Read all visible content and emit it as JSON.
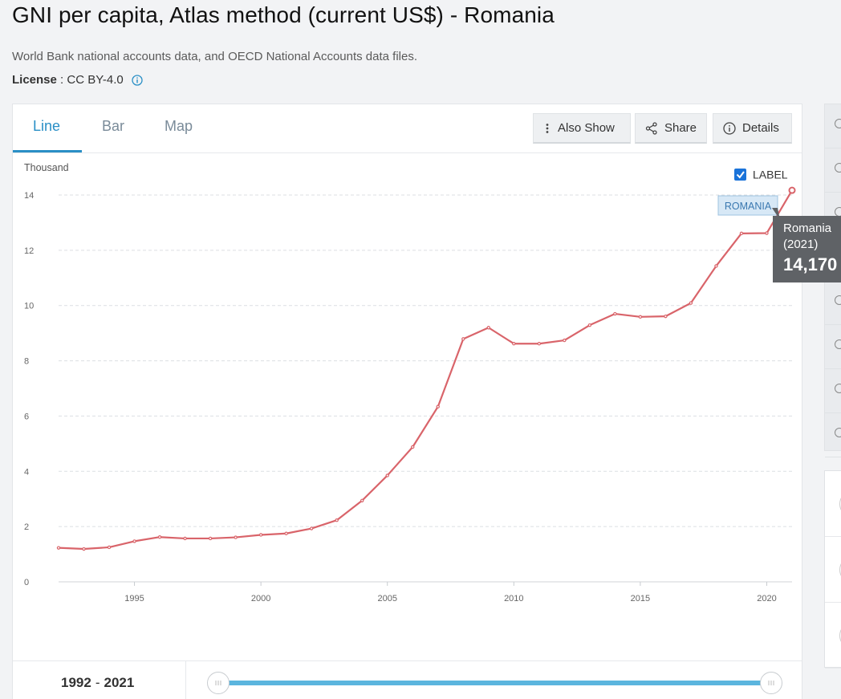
{
  "page": {
    "title": "GNI per capita, Atlas method (current US$) - Romania",
    "source": "World Bank national accounts data, and OECD National Accounts data files.",
    "license_label": "License",
    "license_value": "CC BY-4.0"
  },
  "tabs": [
    {
      "label": "Line",
      "active": true
    },
    {
      "label": "Bar",
      "active": false
    },
    {
      "label": "Map",
      "active": false
    }
  ],
  "toolbar": {
    "also_show": "Also Show",
    "share": "Share",
    "details": "Details"
  },
  "chart_label_toggle": {
    "label": "LABEL",
    "checked": true
  },
  "series_label": "ROMANIA",
  "tooltip": {
    "name": "Romania",
    "year": "(2021)",
    "value": "14,170"
  },
  "range": {
    "start": "1992",
    "end": "2021"
  },
  "colors": {
    "line": "#d9646a",
    "accent": "#2a8fc6",
    "slider": "#5bb5de"
  },
  "chart_data": {
    "type": "line",
    "ylabel": "Thousand",
    "xlabel": "",
    "ylim": [
      0,
      14
    ],
    "xlim": [
      1992,
      2021
    ],
    "yticks": [
      0,
      2,
      4,
      6,
      8,
      10,
      12,
      14
    ],
    "xticks": [
      1995,
      2000,
      2005,
      2010,
      2015,
      2020
    ],
    "grid": true,
    "series": [
      {
        "name": "ROMANIA",
        "x": [
          1992,
          1993,
          1994,
          1995,
          1996,
          1997,
          1998,
          1999,
          2000,
          2001,
          2002,
          2003,
          2004,
          2005,
          2006,
          2007,
          2008,
          2009,
          2010,
          2011,
          2012,
          2013,
          2014,
          2015,
          2016,
          2017,
          2018,
          2019,
          2020,
          2021
        ],
        "y": [
          1.23,
          1.19,
          1.25,
          1.47,
          1.62,
          1.57,
          1.57,
          1.61,
          1.7,
          1.75,
          1.93,
          2.23,
          2.94,
          3.85,
          4.88,
          6.34,
          8.79,
          9.2,
          8.62,
          8.62,
          8.74,
          9.29,
          9.7,
          9.59,
          9.61,
          10.09,
          11.43,
          12.61,
          12.62,
          14.17
        ]
      }
    ]
  }
}
